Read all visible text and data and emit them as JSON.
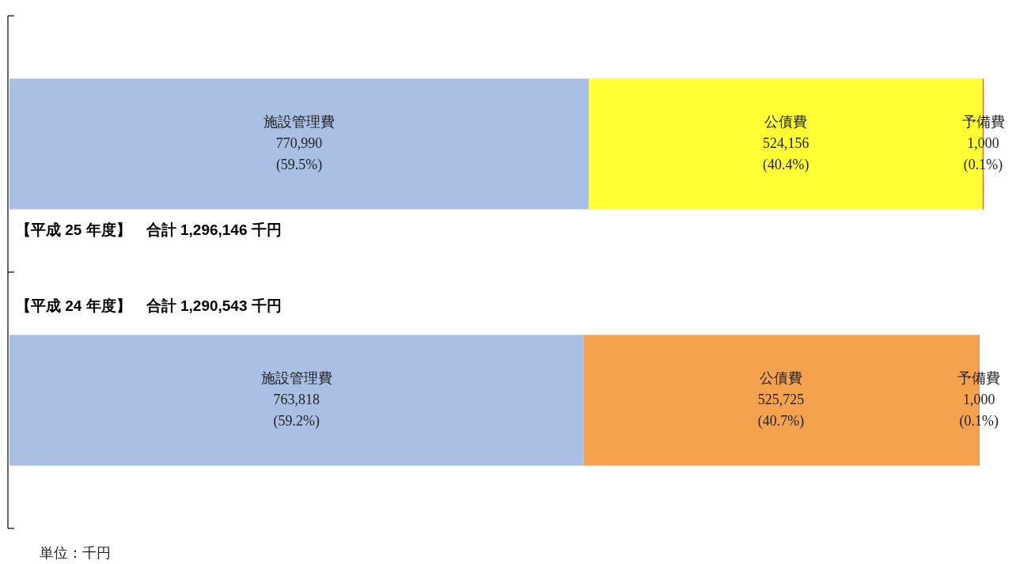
{
  "chart_data": {
    "type": "bar",
    "orientation": "horizontal",
    "stacked": true,
    "legend": false,
    "categories": [
      null,
      null
    ],
    "series": [
      {
        "name": "施設管理費",
        "colors": [
          "#a9bfe3",
          "#a9bfe3"
        ],
        "values": [
          770990,
          763818
        ],
        "value_labels": [
          "770,990\n(59.5%)",
          "763,818\n(59.2%)"
        ]
      },
      {
        "name": "公債費",
        "colors": [
          "#ffff33",
          "#f5a24e"
        ],
        "values": [
          524156,
          525725
        ],
        "value_labels": [
          "524,156\n(40.4%)",
          "525,725\n(40.7%)"
        ]
      },
      {
        "name": "予備費",
        "colors": [
          "#e2492a",
          "#e2492a"
        ],
        "values": [
          1000,
          1000
        ],
        "value_labels": [
          "1,000\n(0.1%)",
          "1,000\n(0.1%)"
        ]
      }
    ],
    "annotations": [
      "【平成 25 年度】　合計 1,296,146 千円",
      "【平成 24 年度】　合計 1,290,543 千円",
      "単位：千円"
    ]
  }
}
